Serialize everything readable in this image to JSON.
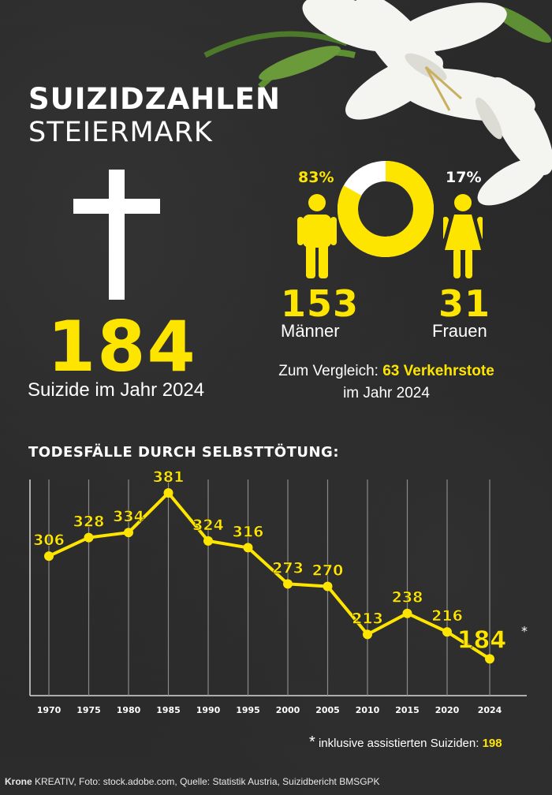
{
  "header": {
    "title_line1": "SUIZIDZAHLEN",
    "title_line2": "STEIERMARK"
  },
  "total": {
    "value": "184",
    "caption": "Suizide im Jahr 2024"
  },
  "gender": {
    "male_pct": "83%",
    "female_pct": "17%",
    "male_count": "153",
    "male_label": "Männer",
    "female_count": "31",
    "female_label": "Frauen",
    "donut_male_share": 0.83,
    "accent": "#fde500"
  },
  "comparison": {
    "prefix": "Zum Vergleich:",
    "highlight": "63 Verkehrstote",
    "suffix": "im Jahr 2024"
  },
  "chart_title": "TODESFÄLLE DURCH SELBSTTÖTUNG:",
  "chart_data": {
    "type": "line",
    "title": "TODESFÄLLE DURCH SELBSTTÖTUNG:",
    "x": [
      "1970",
      "1975",
      "1980",
      "1985",
      "1990",
      "1995",
      "2000",
      "2005",
      "2010",
      "2015",
      "2020",
      "2024"
    ],
    "values": [
      306,
      328,
      334,
      381,
      324,
      316,
      273,
      270,
      213,
      238,
      216,
      184
    ],
    "labels": [
      "306",
      "328",
      "334",
      "381",
      "324",
      "316",
      "273",
      "270",
      "213",
      "238",
      "216",
      "184"
    ],
    "last_marker": "*",
    "ylim": [
      160,
      400
    ],
    "line_color": "#fde500",
    "grid": true
  },
  "footnote": {
    "star": "*",
    "text": "inklusive assistierten Suiziden:",
    "value": "198"
  },
  "footer": {
    "brand": "Krone",
    "text": "KREATIV, Foto: stock.adobe.com, Quelle: Statistik Austria, Suizidbericht BMSGPK"
  }
}
